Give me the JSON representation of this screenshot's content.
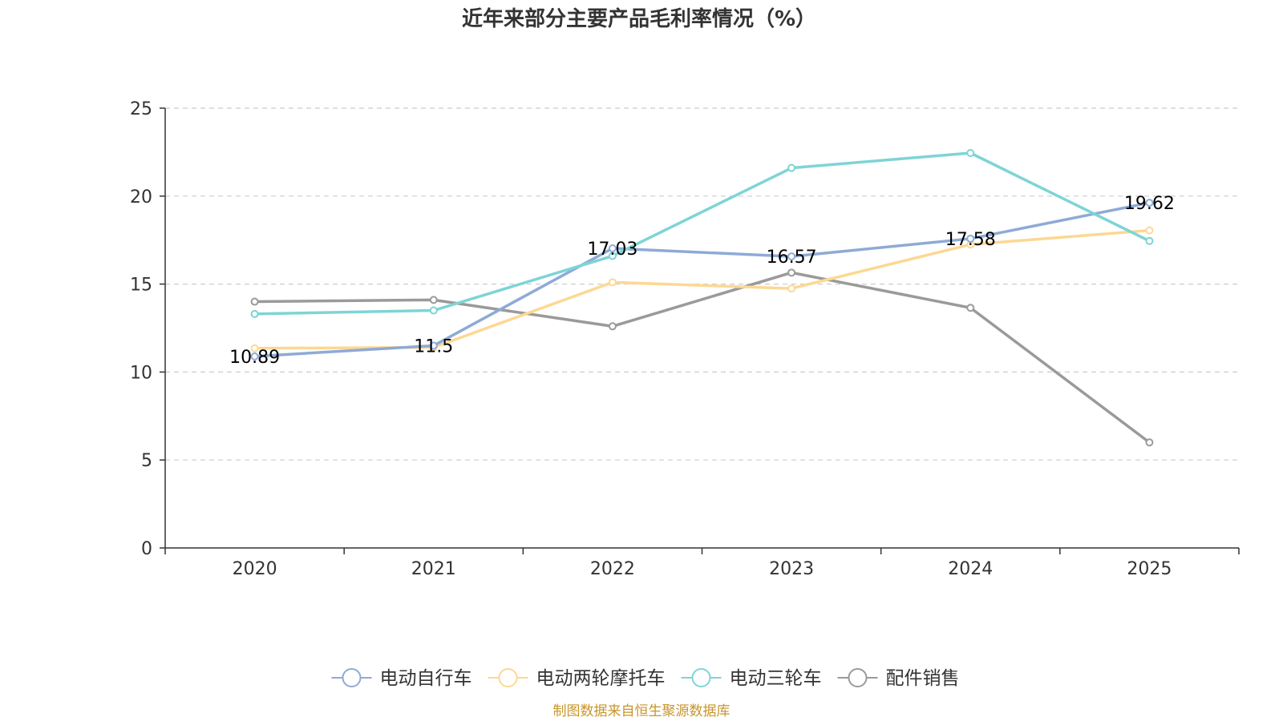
{
  "chart_data": {
    "type": "line",
    "title": "近年来部分主要产品毛利率情况（%）",
    "categories": [
      "2020",
      "2021",
      "2022",
      "2023",
      "2024",
      "2025"
    ],
    "ylim": [
      0,
      25
    ],
    "yticks": [
      0,
      5,
      10,
      15,
      20,
      25
    ],
    "grid": true,
    "legend_position": "bottom",
    "series": [
      {
        "name": "电动自行车",
        "color": "#8eaad6",
        "values": [
          10.89,
          11.5,
          17.03,
          16.57,
          17.58,
          19.62
        ],
        "labels": [
          "10.89",
          "11.5",
          "17.03",
          "16.57",
          "17.58",
          "19.62"
        ]
      },
      {
        "name": "电动两轮摩托车",
        "color": "#fcd893",
        "values": [
          11.35,
          11.4,
          15.1,
          14.75,
          17.25,
          18.05
        ]
      },
      {
        "name": "电动三轮车",
        "color": "#7ed4d6",
        "values": [
          13.3,
          13.5,
          16.6,
          21.6,
          22.45,
          17.45
        ]
      },
      {
        "name": "配件销售",
        "color": "#9a9a9a",
        "values": [
          14.0,
          14.1,
          12.6,
          15.65,
          13.65,
          6.0
        ]
      }
    ]
  },
  "footer": {
    "source": "制图数据来自恒生聚源数据库",
    "source_color": "#c8952b"
  }
}
